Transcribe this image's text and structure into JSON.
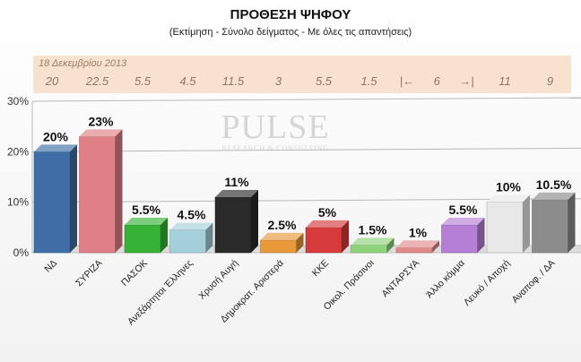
{
  "header": {
    "title": "ΠΡΟΘΕΣΗ ΨΗΦΟΥ",
    "subtitle": "(Εκτίμηση - Σύνολο δείγματος - Με όλες τις απαντήσεις)"
  },
  "previous": {
    "date": "18 Δεκεμβρίου 2013",
    "values": [
      "20",
      "22.5",
      "5.5",
      "4.5",
      "11.5",
      "3",
      "5.5",
      "1.5",
      "6",
      "11",
      "9"
    ],
    "arrow_left": "|←",
    "arrow_right": "→|"
  },
  "watermark": {
    "main": "PULSE",
    "sub": "RESEARCH & CONSULTING"
  },
  "chart_data": {
    "type": "bar",
    "title": "ΠΡΟΘΕΣΗ ΨΗΦΟΥ",
    "subtitle": "(Εκτίμηση - Σύνολο δείγματος - Με όλες τις απαντήσεις)",
    "categories": [
      "ΝΔ",
      "ΣΥΡΙΖΑ",
      "ΠΑΣΟΚ",
      "Ανεξάρτητοι Έλληνες",
      "Χρυσή Αυγή",
      "Δημοκρατ. Αριστερά",
      "ΚΚΕ",
      "Οικολ. Πράσινοι",
      "ΑΝΤΑΡΣΥΑ",
      "Άλλο κόμμα",
      "Λευκό / Αποχή",
      "Αναποφ. / ΔΑ"
    ],
    "values": [
      20,
      23,
      5.5,
      4.5,
      11,
      2.5,
      5,
      1.5,
      1,
      5.5,
      10,
      10.5
    ],
    "value_labels": [
      "20%",
      "23%",
      "5.5%",
      "4.5%",
      "11%",
      "2.5%",
      "5%",
      "1.5%",
      "1%",
      "5.5%",
      "10%",
      "10.5%"
    ],
    "colors": [
      "#3f6ea6",
      "#e07f86",
      "#36b236",
      "#a5cfd9",
      "#2a2a2a",
      "#e89a3a",
      "#d63a3a",
      "#8fd27c",
      "#e08a8a",
      "#b57fd6",
      "#e8e8e8",
      "#8c8c8c"
    ],
    "ylim": [
      0,
      30
    ],
    "yticks": [
      "0%",
      "10%",
      "20%",
      "30%"
    ],
    "grid": true
  }
}
